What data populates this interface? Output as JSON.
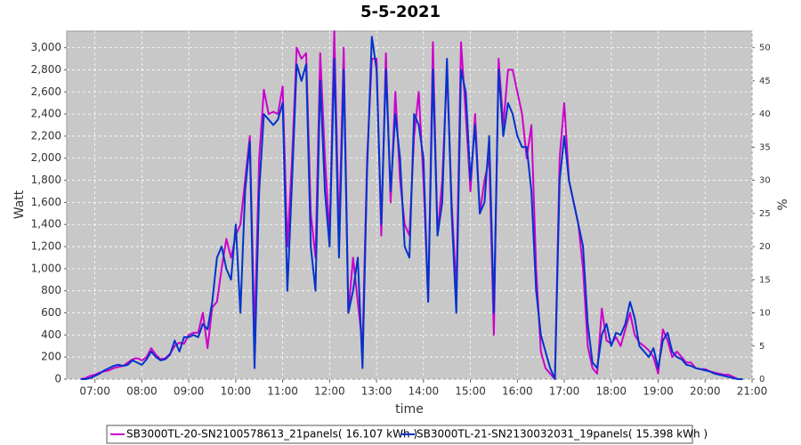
{
  "chart_data": {
    "type": "line",
    "title": "5-5-2021",
    "x_label": "time",
    "y_label": "Watt",
    "y2_label": "%",
    "xlim": [
      6.4,
      21.0
    ],
    "xticks": [
      {
        "value": 7,
        "label": "07:00"
      },
      {
        "value": 8,
        "label": "08:00"
      },
      {
        "value": 9,
        "label": "09:00"
      },
      {
        "value": 10,
        "label": "10:00"
      },
      {
        "value": 11,
        "label": "11:00"
      },
      {
        "value": 12,
        "label": "12:00"
      },
      {
        "value": 13,
        "label": "13:00"
      },
      {
        "value": 14,
        "label": "14:00"
      },
      {
        "value": 15,
        "label": "15:00"
      },
      {
        "value": 16,
        "label": "16:00"
      },
      {
        "value": 17,
        "label": "17:00"
      },
      {
        "value": 18,
        "label": "18:00"
      },
      {
        "value": 19,
        "label": "19:00"
      },
      {
        "value": 20,
        "label": "20:00"
      },
      {
        "value": 21,
        "label": "21:00"
      }
    ],
    "ylim": [
      0,
      3150
    ],
    "yticks": [
      0,
      200,
      400,
      600,
      800,
      {
        "value": 1000,
        "label": "1,000"
      },
      {
        "value": 1200,
        "label": "1,200"
      },
      {
        "value": 1400,
        "label": "1,400"
      },
      {
        "value": 1600,
        "label": "1,600"
      },
      {
        "value": 1800,
        "label": "1,800"
      },
      {
        "value": 2000,
        "label": "2,000"
      },
      {
        "value": 2200,
        "label": "2,200"
      },
      {
        "value": 2400,
        "label": "2,400"
      },
      {
        "value": 2600,
        "label": "2,600"
      },
      {
        "value": 2800,
        "label": "2,800"
      },
      {
        "value": 3000,
        "label": "3,000"
      }
    ],
    "y2lim": [
      0,
      52.5
    ],
    "y2ticks": [
      0,
      5,
      10,
      15,
      20,
      25,
      30,
      35,
      40,
      45,
      50
    ],
    "grid": true,
    "legend": "bottom",
    "x": [
      6.7,
      6.8,
      6.9,
      7.0,
      7.1,
      7.2,
      7.3,
      7.4,
      7.5,
      7.6,
      7.7,
      7.8,
      7.9,
      8.0,
      8.1,
      8.2,
      8.3,
      8.4,
      8.5,
      8.6,
      8.7,
      8.8,
      8.9,
      9.0,
      9.1,
      9.2,
      9.3,
      9.4,
      9.5,
      9.6,
      9.7,
      9.8,
      9.9,
      10.0,
      10.1,
      10.2,
      10.3,
      10.4,
      10.5,
      10.6,
      10.7,
      10.8,
      10.9,
      11.0,
      11.1,
      11.2,
      11.3,
      11.4,
      11.5,
      11.6,
      11.7,
      11.8,
      11.9,
      12.0,
      12.1,
      12.2,
      12.3,
      12.4,
      12.5,
      12.6,
      12.7,
      12.8,
      12.9,
      13.0,
      13.1,
      13.2,
      13.3,
      13.4,
      13.5,
      13.6,
      13.7,
      13.8,
      13.9,
      14.0,
      14.1,
      14.2,
      14.3,
      14.4,
      14.5,
      14.6,
      14.7,
      14.8,
      14.9,
      15.0,
      15.1,
      15.2,
      15.3,
      15.4,
      15.5,
      15.6,
      15.7,
      15.8,
      15.9,
      16.0,
      16.1,
      16.2,
      16.3,
      16.4,
      16.5,
      16.6,
      16.7,
      16.8,
      16.9,
      17.0,
      17.1,
      17.2,
      17.3,
      17.4,
      17.5,
      17.6,
      17.7,
      17.8,
      17.9,
      18.0,
      18.1,
      18.2,
      18.3,
      18.4,
      18.5,
      18.6,
      18.7,
      18.8,
      18.9,
      19.0,
      19.1,
      19.2,
      19.3,
      19.4,
      19.5,
      19.6,
      19.7,
      19.8,
      19.9,
      20.0,
      20.1,
      20.2,
      20.3,
      20.4,
      20.5,
      20.6,
      20.7,
      20.8
    ],
    "series": [
      {
        "name": "SB3000TL-20-SN2100578613_21panels( 16.107 kWh )",
        "color": "#cc00cc",
        "values": [
          0,
          10,
          30,
          40,
          60,
          70,
          80,
          100,
          110,
          120,
          150,
          180,
          190,
          170,
          200,
          280,
          220,
          180,
          190,
          230,
          300,
          330,
          320,
          400,
          420,
          420,
          600,
          280,
          650,
          700,
          1000,
          1270,
          1100,
          1300,
          1400,
          1800,
          2200,
          400,
          2000,
          2620,
          2400,
          2420,
          2400,
          2650,
          1200,
          2000,
          3000,
          2900,
          2950,
          1500,
          1100,
          2950,
          2000,
          1300,
          3150,
          1300,
          3000,
          600,
          1100,
          700,
          300,
          2000,
          2900,
          2900,
          1300,
          2950,
          1600,
          2600,
          1800,
          1400,
          1300,
          2200,
          2600,
          1800,
          700,
          3050,
          1300,
          1800,
          2800,
          1600,
          800,
          3050,
          2400,
          1700,
          2400,
          1500,
          1800,
          2000,
          400,
          2900,
          2300,
          2800,
          2800,
          2600,
          2400,
          2000,
          2300,
          1000,
          250,
          100,
          50,
          0,
          2000,
          2500,
          1800,
          1600,
          1400,
          1000,
          300,
          100,
          50,
          640,
          350,
          320,
          380,
          300,
          450,
          600,
          400,
          330,
          300,
          260,
          200,
          50,
          450,
          350,
          200,
          250,
          200,
          150,
          150,
          100,
          90,
          90,
          70,
          60,
          50,
          40,
          40,
          20,
          0,
          0
        ]
      },
      {
        "name": "SB3000TL-21-SN2130032031_19panels( 15.398 kWh )",
        "color": "#0033cc",
        "values": [
          0,
          0,
          10,
          30,
          50,
          80,
          100,
          120,
          130,
          120,
          130,
          170,
          150,
          130,
          180,
          250,
          200,
          170,
          180,
          220,
          350,
          250,
          380,
          380,
          400,
          380,
          500,
          450,
          700,
          1100,
          1200,
          1000,
          900,
          1400,
          600,
          1700,
          2150,
          100,
          1700,
          2400,
          2350,
          2300,
          2350,
          2500,
          800,
          1800,
          2850,
          2700,
          2850,
          1200,
          800,
          2700,
          1700,
          1200,
          2900,
          1100,
          2800,
          600,
          800,
          1100,
          100,
          1900,
          3100,
          2800,
          1400,
          2800,
          1700,
          2400,
          2000,
          1200,
          1100,
          2400,
          2300,
          2000,
          700,
          2800,
          1300,
          1600,
          2900,
          1500,
          600,
          2800,
          2600,
          1800,
          2300,
          1500,
          1600,
          2200,
          600,
          2800,
          2200,
          2500,
          2400,
          2200,
          2100,
          2100,
          1700,
          800,
          400,
          250,
          100,
          0,
          1800,
          2200,
          1800,
          1600,
          1400,
          1200,
          500,
          150,
          100,
          400,
          500,
          300,
          420,
          400,
          500,
          700,
          550,
          300,
          250,
          200,
          280,
          100,
          350,
          420,
          250,
          200,
          180,
          130,
          120,
          100,
          90,
          80,
          70,
          50,
          40,
          30,
          20,
          10,
          0,
          0
        ]
      }
    ]
  }
}
